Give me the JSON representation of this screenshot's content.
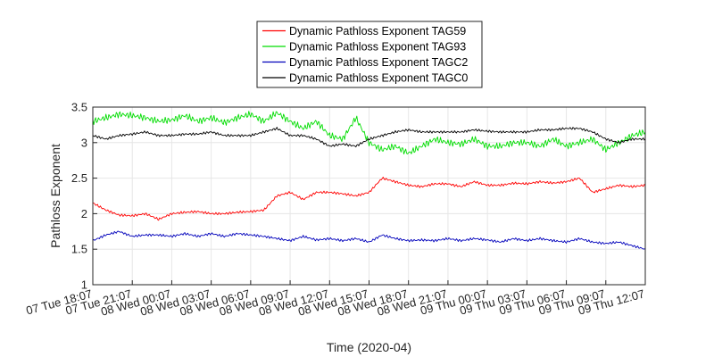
{
  "chart_data": {
    "type": "line",
    "xlabel": "Time (2020-04)",
    "ylabel": "Pathloss Exponent",
    "ylim": [
      1,
      3.5
    ],
    "yticks": [
      "1",
      "1.5",
      "2",
      "2.5",
      "3",
      "3.5"
    ],
    "xlim_hours": [
      0,
      42
    ],
    "xticks": [
      "07 Tue 18:07",
      "07 Tue 21:07",
      "08 Wed 00:07",
      "08 Wed 03:07",
      "08 Wed 06:07",
      "08 Wed 09:07",
      "08 Wed 12:07",
      "08 Wed 15:07",
      "08 Wed 18:07",
      "08 Wed 21:07",
      "09 Thu 00:07",
      "09 Thu 03:07",
      "09 Thu 06:07",
      "09 Thu 09:07",
      "09 Thu 12:07"
    ],
    "grid": true,
    "legend_position": "top-center",
    "series": [
      {
        "name": "Dynamic Pathloss Exponent TAG59",
        "color": "#ff0000",
        "points": [
          [
            0,
            2.15
          ],
          [
            1,
            2.05
          ],
          [
            2,
            1.98
          ],
          [
            3,
            1.97
          ],
          [
            4,
            2.0
          ],
          [
            5,
            1.92
          ],
          [
            6,
            2.0
          ],
          [
            7,
            2.02
          ],
          [
            8,
            2.03
          ],
          [
            9,
            2.0
          ],
          [
            10,
            2.0
          ],
          [
            11,
            2.02
          ],
          [
            12,
            2.03
          ],
          [
            13,
            2.05
          ],
          [
            14,
            2.25
          ],
          [
            15,
            2.3
          ],
          [
            16,
            2.2
          ],
          [
            17,
            2.3
          ],
          [
            18,
            2.3
          ],
          [
            19,
            2.28
          ],
          [
            20,
            2.25
          ],
          [
            21,
            2.3
          ],
          [
            22,
            2.5
          ],
          [
            23,
            2.45
          ],
          [
            24,
            2.4
          ],
          [
            25,
            2.38
          ],
          [
            26,
            2.42
          ],
          [
            27,
            2.42
          ],
          [
            28,
            2.38
          ],
          [
            29,
            2.45
          ],
          [
            30,
            2.4
          ],
          [
            31,
            2.4
          ],
          [
            32,
            2.43
          ],
          [
            33,
            2.42
          ],
          [
            34,
            2.45
          ],
          [
            35,
            2.43
          ],
          [
            36,
            2.45
          ],
          [
            37,
            2.5
          ],
          [
            38,
            2.3
          ],
          [
            39,
            2.35
          ],
          [
            40,
            2.4
          ],
          [
            41,
            2.38
          ],
          [
            42,
            2.4
          ]
        ]
      },
      {
        "name": "Dynamic Pathloss Exponent TAG93",
        "color": "#00dd00",
        "points": [
          [
            0,
            3.3
          ],
          [
            1,
            3.35
          ],
          [
            2,
            3.4
          ],
          [
            3,
            3.38
          ],
          [
            4,
            3.35
          ],
          [
            5,
            3.3
          ],
          [
            6,
            3.32
          ],
          [
            7,
            3.38
          ],
          [
            8,
            3.3
          ],
          [
            9,
            3.35
          ],
          [
            10,
            3.28
          ],
          [
            11,
            3.35
          ],
          [
            12,
            3.4
          ],
          [
            13,
            3.3
          ],
          [
            14,
            3.42
          ],
          [
            15,
            3.3
          ],
          [
            16,
            3.2
          ],
          [
            17,
            3.3
          ],
          [
            18,
            3.1
          ],
          [
            19,
            3.05
          ],
          [
            20,
            3.35
          ],
          [
            21,
            3.0
          ],
          [
            22,
            2.9
          ],
          [
            23,
            2.95
          ],
          [
            24,
            2.85
          ],
          [
            25,
            2.95
          ],
          [
            26,
            3.05
          ],
          [
            27,
            3.0
          ],
          [
            28,
            2.98
          ],
          [
            29,
            3.05
          ],
          [
            30,
            2.95
          ],
          [
            31,
            2.95
          ],
          [
            32,
            3.0
          ],
          [
            33,
            3.0
          ],
          [
            34,
            2.95
          ],
          [
            35,
            3.05
          ],
          [
            36,
            2.95
          ],
          [
            37,
            3.0
          ],
          [
            38,
            3.05
          ],
          [
            39,
            2.9
          ],
          [
            40,
            3.0
          ],
          [
            41,
            3.1
          ],
          [
            42,
            3.15
          ]
        ]
      },
      {
        "name": "Dynamic Pathloss Exponent TAGC2",
        "color": "#0000bb",
        "points": [
          [
            0,
            1.62
          ],
          [
            1,
            1.7
          ],
          [
            2,
            1.75
          ],
          [
            3,
            1.68
          ],
          [
            4,
            1.7
          ],
          [
            5,
            1.7
          ],
          [
            6,
            1.68
          ],
          [
            7,
            1.72
          ],
          [
            8,
            1.68
          ],
          [
            9,
            1.72
          ],
          [
            10,
            1.68
          ],
          [
            11,
            1.72
          ],
          [
            12,
            1.7
          ],
          [
            13,
            1.68
          ],
          [
            14,
            1.65
          ],
          [
            15,
            1.62
          ],
          [
            16,
            1.68
          ],
          [
            17,
            1.63
          ],
          [
            18,
            1.65
          ],
          [
            19,
            1.62
          ],
          [
            20,
            1.65
          ],
          [
            21,
            1.6
          ],
          [
            22,
            1.7
          ],
          [
            23,
            1.65
          ],
          [
            24,
            1.62
          ],
          [
            25,
            1.63
          ],
          [
            26,
            1.62
          ],
          [
            27,
            1.65
          ],
          [
            28,
            1.62
          ],
          [
            29,
            1.65
          ],
          [
            30,
            1.63
          ],
          [
            31,
            1.6
          ],
          [
            32,
            1.65
          ],
          [
            33,
            1.62
          ],
          [
            34,
            1.65
          ],
          [
            35,
            1.62
          ],
          [
            36,
            1.6
          ],
          [
            37,
            1.65
          ],
          [
            38,
            1.6
          ],
          [
            39,
            1.58
          ],
          [
            40,
            1.6
          ],
          [
            41,
            1.55
          ],
          [
            42,
            1.5
          ]
        ]
      },
      {
        "name": "Dynamic Pathloss Exponent TAGC0",
        "color": "#000000",
        "points": [
          [
            0,
            3.1
          ],
          [
            1,
            3.05
          ],
          [
            2,
            3.1
          ],
          [
            3,
            3.12
          ],
          [
            4,
            3.15
          ],
          [
            5,
            3.1
          ],
          [
            6,
            3.1
          ],
          [
            7,
            3.12
          ],
          [
            8,
            3.12
          ],
          [
            9,
            3.15
          ],
          [
            10,
            3.1
          ],
          [
            11,
            3.1
          ],
          [
            12,
            3.1
          ],
          [
            13,
            3.15
          ],
          [
            14,
            3.2
          ],
          [
            15,
            3.1
          ],
          [
            16,
            3.1
          ],
          [
            17,
            3.05
          ],
          [
            18,
            2.95
          ],
          [
            19,
            2.98
          ],
          [
            20,
            2.95
          ],
          [
            21,
            3.05
          ],
          [
            22,
            3.1
          ],
          [
            23,
            3.15
          ],
          [
            24,
            3.18
          ],
          [
            25,
            3.15
          ],
          [
            26,
            3.15
          ],
          [
            27,
            3.15
          ],
          [
            28,
            3.15
          ],
          [
            29,
            3.18
          ],
          [
            30,
            3.16
          ],
          [
            31,
            3.15
          ],
          [
            32,
            3.15
          ],
          [
            33,
            3.15
          ],
          [
            34,
            3.18
          ],
          [
            35,
            3.18
          ],
          [
            36,
            3.2
          ],
          [
            37,
            3.2
          ],
          [
            38,
            3.15
          ],
          [
            39,
            3.05
          ],
          [
            40,
            3.0
          ],
          [
            41,
            3.05
          ],
          [
            42,
            3.05
          ]
        ]
      }
    ]
  }
}
